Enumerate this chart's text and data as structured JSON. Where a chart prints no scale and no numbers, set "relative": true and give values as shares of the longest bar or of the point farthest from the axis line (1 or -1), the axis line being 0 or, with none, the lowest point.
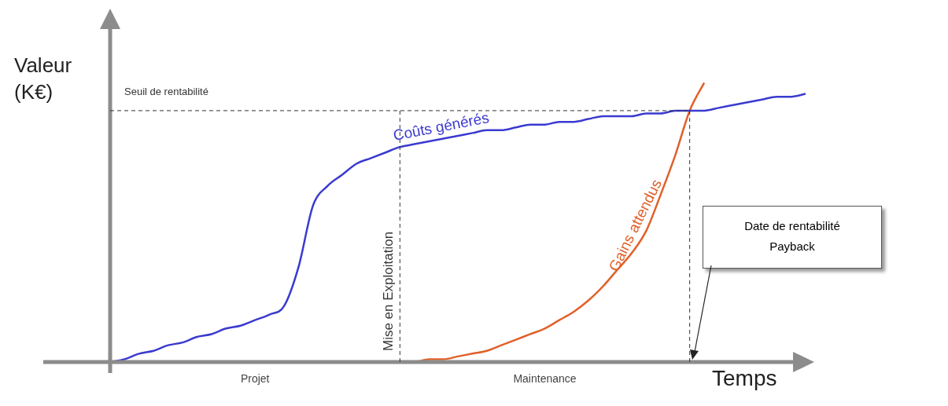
{
  "chart_data": {
    "type": "line",
    "relative": true,
    "xlabel": "Temps",
    "ylabel": "Valeur (K€)",
    "legend": false,
    "grid": false,
    "tick_labels": false,
    "marker": "none",
    "line_style": "solid",
    "categories": [
      null,
      null,
      null,
      null,
      null,
      null,
      null,
      null,
      null,
      null,
      null,
      null,
      null,
      null,
      null,
      null,
      null,
      null,
      null,
      null,
      null,
      null,
      null,
      null,
      null,
      null,
      null,
      null,
      null,
      null,
      null,
      null,
      null,
      null,
      null,
      null,
      null,
      null,
      null,
      null,
      null,
      null,
      null,
      null,
      null,
      null,
      null,
      null,
      null
    ],
    "series": [
      {
        "name": "Coûts générés",
        "color": "#3a3ad0",
        "values": [
          0,
          0.01,
          0.03,
          0.04,
          0.06,
          0.07,
          0.09,
          0.1,
          0.12,
          0.13,
          0.15,
          0.17,
          0.2,
          0.34,
          0.56,
          0.63,
          0.67,
          0.71,
          0.73,
          0.75,
          0.77,
          0.78,
          0.79,
          0.8,
          0.81,
          0.82,
          0.83,
          0.83,
          0.84,
          0.85,
          0.85,
          0.86,
          0.86,
          0.87,
          0.88,
          0.88,
          0.88,
          0.89,
          0.89,
          0.9,
          0.9,
          0.9,
          0.91,
          0.92,
          0.93,
          0.94,
          0.95,
          0.95,
          0.96
        ]
      },
      {
        "name": "Gains attendus",
        "color": "#e0602a",
        "values": [
          null,
          null,
          null,
          null,
          null,
          null,
          null,
          null,
          null,
          null,
          null,
          null,
          null,
          null,
          null,
          null,
          null,
          null,
          null,
          null,
          0,
          0,
          0.01,
          0.01,
          0.02,
          0.03,
          0.04,
          0.06,
          0.08,
          0.1,
          0.12,
          0.15,
          0.18,
          0.22,
          0.27,
          0.33,
          0.39,
          0.47,
          0.6,
          0.74,
          0.9,
          1,
          null,
          null,
          null,
          null,
          null,
          null,
          null
        ]
      }
    ],
    "ref_lines": [
      {
        "axis": "y",
        "value": 0.9,
        "label": "Seuil de rentabilité",
        "line_style": "dashed"
      }
    ],
    "annotations": [
      "Projet",
      "Maintenance",
      "Mise en Exploitation",
      "Date de rentabilité\nPayback"
    ]
  }
}
